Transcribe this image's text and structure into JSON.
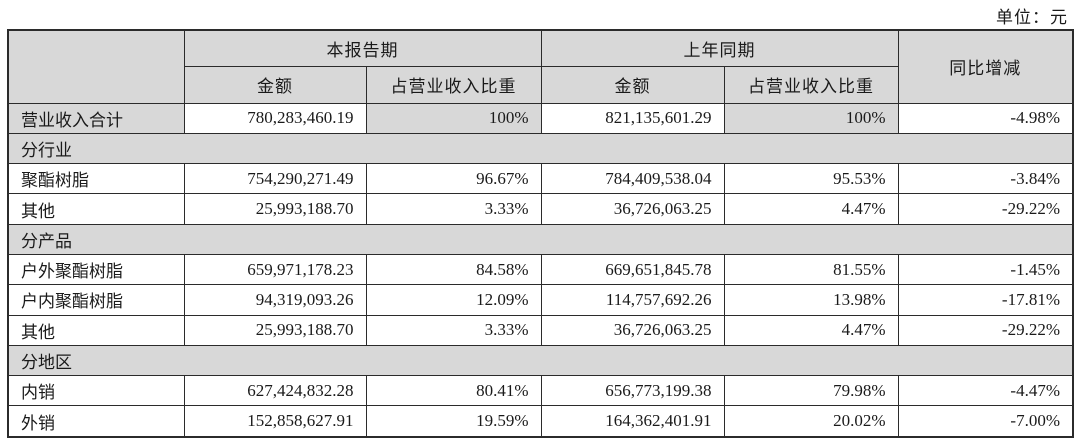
{
  "unit_label": "单位：元",
  "colors": {
    "header_bg": "#d8d8d8",
    "border": "#2b2b2b",
    "text": "#1a1a1a",
    "page_bg": "#ffffff"
  },
  "table": {
    "headers": {
      "current_period": "本报告期",
      "prior_period": "上年同期",
      "yoy": "同比增减",
      "amount": "金额",
      "proportion": "占营业收入比重"
    },
    "rows": [
      {
        "label": "营业收入合计",
        "current_amount": "780,283,460.19",
        "current_pct": "100%",
        "prior_amount": "821,135,601.29",
        "prior_pct": "100%",
        "yoy": "-4.98%"
      },
      {
        "section": "分行业"
      },
      {
        "label": "聚酯树脂",
        "current_amount": "754,290,271.49",
        "current_pct": "96.67%",
        "prior_amount": "784,409,538.04",
        "prior_pct": "95.53%",
        "yoy": "-3.84%"
      },
      {
        "label": "其他",
        "current_amount": "25,993,188.70",
        "current_pct": "3.33%",
        "prior_amount": "36,726,063.25",
        "prior_pct": "4.47%",
        "yoy": "-29.22%"
      },
      {
        "section": "分产品"
      },
      {
        "label": "户外聚酯树脂",
        "current_amount": "659,971,178.23",
        "current_pct": "84.58%",
        "prior_amount": "669,651,845.78",
        "prior_pct": "81.55%",
        "yoy": "-1.45%"
      },
      {
        "label": "户内聚酯树脂",
        "current_amount": "94,319,093.26",
        "current_pct": "12.09%",
        "prior_amount": "114,757,692.26",
        "prior_pct": "13.98%",
        "yoy": "-17.81%"
      },
      {
        "label": "其他",
        "current_amount": "25,993,188.70",
        "current_pct": "3.33%",
        "prior_amount": "36,726,063.25",
        "prior_pct": "4.47%",
        "yoy": "-29.22%"
      },
      {
        "section": "分地区"
      },
      {
        "label": "内销",
        "current_amount": "627,424,832.28",
        "current_pct": "80.41%",
        "prior_amount": "656,773,199.38",
        "prior_pct": "79.98%",
        "yoy": "-4.47%"
      },
      {
        "label": "外销",
        "current_amount": "152,858,627.91",
        "current_pct": "19.59%",
        "prior_amount": "164,362,401.91",
        "prior_pct": "20.02%",
        "yoy": "-7.00%"
      }
    ]
  }
}
